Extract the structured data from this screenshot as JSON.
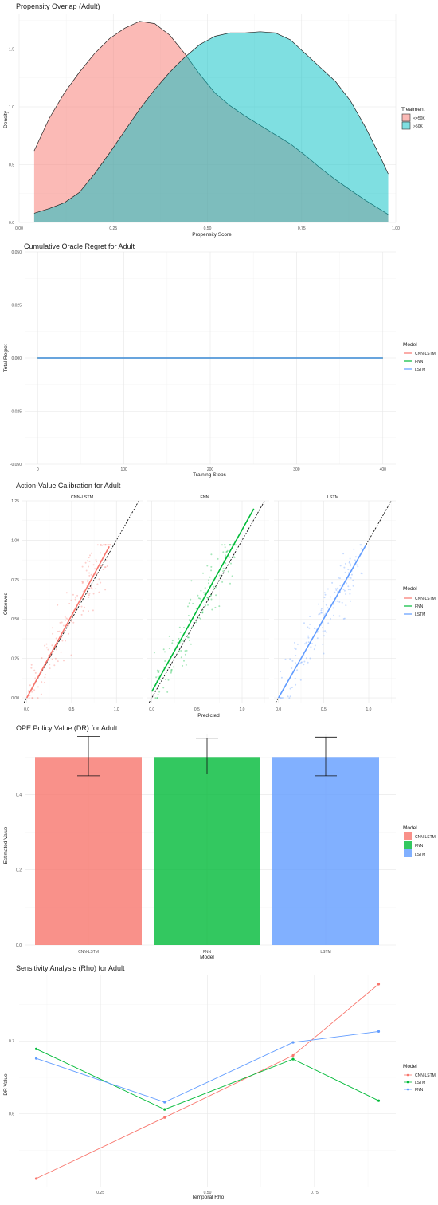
{
  "chart_data": [
    {
      "type": "area",
      "title": "Propensity Overlap (Adult)",
      "xlabel": "Propensity Score",
      "ylabel": "Density",
      "xlim": [
        0.0,
        1.0
      ],
      "ylim": [
        0.0,
        1.8
      ],
      "xticks": [
        "0.00",
        "0.25",
        "0.50",
        "0.75",
        "1.00"
      ],
      "yticks": [
        "0.0",
        "0.5",
        "1.0",
        "1.5"
      ],
      "legend_title": "Treatment",
      "series": [
        {
          "name": "<=50K",
          "color": "#F8766D",
          "x": [
            0.04,
            0.08,
            0.12,
            0.16,
            0.2,
            0.24,
            0.28,
            0.32,
            0.36,
            0.4,
            0.44,
            0.48,
            0.52,
            0.56,
            0.6,
            0.64,
            0.68,
            0.72,
            0.76,
            0.8,
            0.84,
            0.88,
            0.92,
            0.96,
            0.98
          ],
          "y": [
            0.62,
            0.9,
            1.12,
            1.3,
            1.46,
            1.59,
            1.68,
            1.74,
            1.72,
            1.62,
            1.46,
            1.28,
            1.12,
            1.01,
            0.92,
            0.84,
            0.76,
            0.68,
            0.58,
            0.47,
            0.37,
            0.28,
            0.19,
            0.11,
            0.07
          ]
        },
        {
          "name": ">50K",
          "color": "#00BFC4",
          "x": [
            0.04,
            0.08,
            0.12,
            0.16,
            0.2,
            0.24,
            0.28,
            0.32,
            0.36,
            0.4,
            0.44,
            0.48,
            0.52,
            0.56,
            0.6,
            0.64,
            0.68,
            0.72,
            0.76,
            0.8,
            0.84,
            0.88,
            0.92,
            0.96,
            0.98
          ],
          "y": [
            0.08,
            0.12,
            0.17,
            0.26,
            0.42,
            0.6,
            0.79,
            0.98,
            1.15,
            1.3,
            1.43,
            1.54,
            1.61,
            1.64,
            1.64,
            1.65,
            1.64,
            1.58,
            1.46,
            1.34,
            1.22,
            1.05,
            0.82,
            0.56,
            0.42
          ]
        }
      ]
    },
    {
      "type": "line",
      "title": "Cumulative Oracle Regret for Adult",
      "xlabel": "Training Steps",
      "ylabel": "Total Regret",
      "xlim": [
        -15,
        415
      ],
      "ylim": [
        -0.05,
        0.05
      ],
      "xticks": [
        "0",
        "100",
        "200",
        "300",
        "400"
      ],
      "yticks": [
        "-0.050",
        "-0.025",
        "0.000",
        "0.025",
        "0.050"
      ],
      "legend_title": "Model",
      "series": [
        {
          "name": "CNN-LSTM",
          "color": "#F8766D",
          "x": [
            0,
            400
          ],
          "y": [
            0,
            0
          ]
        },
        {
          "name": "FNN",
          "color": "#00BA38",
          "x": [
            0,
            400
          ],
          "y": [
            0,
            0
          ]
        },
        {
          "name": "LSTM",
          "color": "#619CFF",
          "x": [
            0,
            400
          ],
          "y": [
            0,
            0
          ]
        }
      ]
    },
    {
      "type": "scatter",
      "title": "Action-Value Calibration for Adult",
      "xlabel": "Predicted",
      "ylabel": "Observed",
      "xlim": [
        -0.05,
        1.3
      ],
      "ylim": [
        -0.03,
        1.25
      ],
      "xticks": [
        "0.0",
        "0.5",
        "1.0"
      ],
      "yticks": [
        "0.00",
        "0.25",
        "0.50",
        "0.75",
        "1.00",
        "1.25"
      ],
      "facets": [
        "CNN-LSTM",
        "FNN",
        "LSTM"
      ],
      "legend_title": "Model",
      "series": [
        {
          "name": "CNN-LSTM",
          "color": "#F8766D",
          "fit": {
            "x": [
              0.0,
              0.92
            ],
            "y": [
              0.0,
              0.96
            ]
          }
        },
        {
          "name": "FNN",
          "color": "#00BA38",
          "fit": {
            "x": [
              0.0,
              1.13
            ],
            "y": [
              0.04,
              1.2
            ]
          }
        },
        {
          "name": "LSTM",
          "color": "#619CFF",
          "fit": {
            "x": [
              0.0,
              0.97
            ],
            "y": [
              0.0,
              0.97
            ]
          }
        }
      ]
    },
    {
      "type": "bar",
      "title": "OPE Policy Value (DR) for Adult",
      "xlabel": "Model",
      "ylabel": "Estimated Value",
      "categories": [
        "CNN-LSTM",
        "FNN",
        "LSTM"
      ],
      "values": [
        0.5,
        0.5,
        0.5
      ],
      "error_low": [
        0.45,
        0.455,
        0.45
      ],
      "error_high": [
        0.555,
        0.55,
        0.553
      ],
      "colors": [
        "#F8766D",
        "#00BA38",
        "#619CFF"
      ],
      "ylim": [
        0.0,
        0.56
      ],
      "yticks": [
        "0.0",
        "0.2",
        "0.4"
      ],
      "legend_title": "Model",
      "legend": [
        "CNN-LSTM",
        "FNN",
        "LSTM"
      ]
    },
    {
      "type": "line",
      "title": "Sensitivity Analysis (Rho) for Adult",
      "xlabel": "Temporal Rho",
      "ylabel": "DR Value",
      "xlim": [
        0.06,
        0.94
      ],
      "ylim": [
        0.5,
        0.79
      ],
      "xticks": [
        "0.25",
        "0.50",
        "0.75"
      ],
      "yticks": [
        "0.6",
        "0.7"
      ],
      "legend_title": "Model",
      "series": [
        {
          "name": "CNN-LSTM",
          "color": "#F8766D",
          "x": [
            0.1,
            0.4,
            0.7,
            0.9
          ],
          "y": [
            0.511,
            0.595,
            0.68,
            0.778
          ]
        },
        {
          "name": "LSTM",
          "color": "#00BA38",
          "x": [
            0.1,
            0.4,
            0.7,
            0.9
          ],
          "y": [
            0.689,
            0.606,
            0.675,
            0.618
          ]
        },
        {
          "name": "FNN",
          "color": "#619CFF",
          "x": [
            0.1,
            0.4,
            0.7,
            0.9
          ],
          "y": [
            0.676,
            0.616,
            0.698,
            0.713
          ]
        }
      ]
    }
  ]
}
